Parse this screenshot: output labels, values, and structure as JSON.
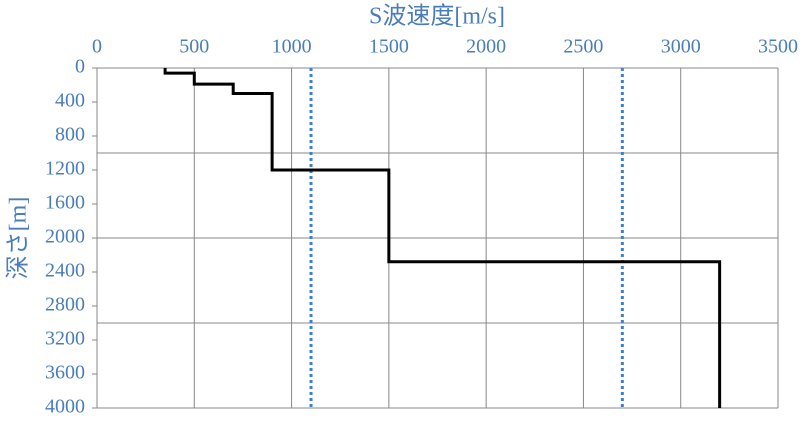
{
  "chart_data": {
    "type": "step-line",
    "title": "S波速度[m/s]",
    "y_label": "深さ[m]",
    "xlim": [
      0,
      3500
    ],
    "xticks": [
      0,
      500,
      1000,
      1500,
      2000,
      2500,
      3000,
      3500
    ],
    "ylim": [
      0,
      4000
    ],
    "yticks": [
      0,
      400,
      800,
      1200,
      1600,
      2000,
      2400,
      2800,
      3200,
      3600,
      4000
    ],
    "y_inverted": true,
    "x_axis_position": "top",
    "ygrid": [
      1000,
      2000,
      3000
    ],
    "grid_color": "#888888",
    "series": [
      {
        "color": "#000000",
        "x": [
          350,
          350,
          500,
          500,
          700,
          700,
          900,
          900,
          1500,
          1500,
          3200,
          3200
        ],
        "y": [
          0,
          60,
          60,
          190,
          190,
          300,
          300,
          1200,
          1200,
          2280,
          2280,
          4000
        ]
      }
    ],
    "vlines": [
      1100,
      2700
    ],
    "vline_color": "#3d7fd6"
  }
}
